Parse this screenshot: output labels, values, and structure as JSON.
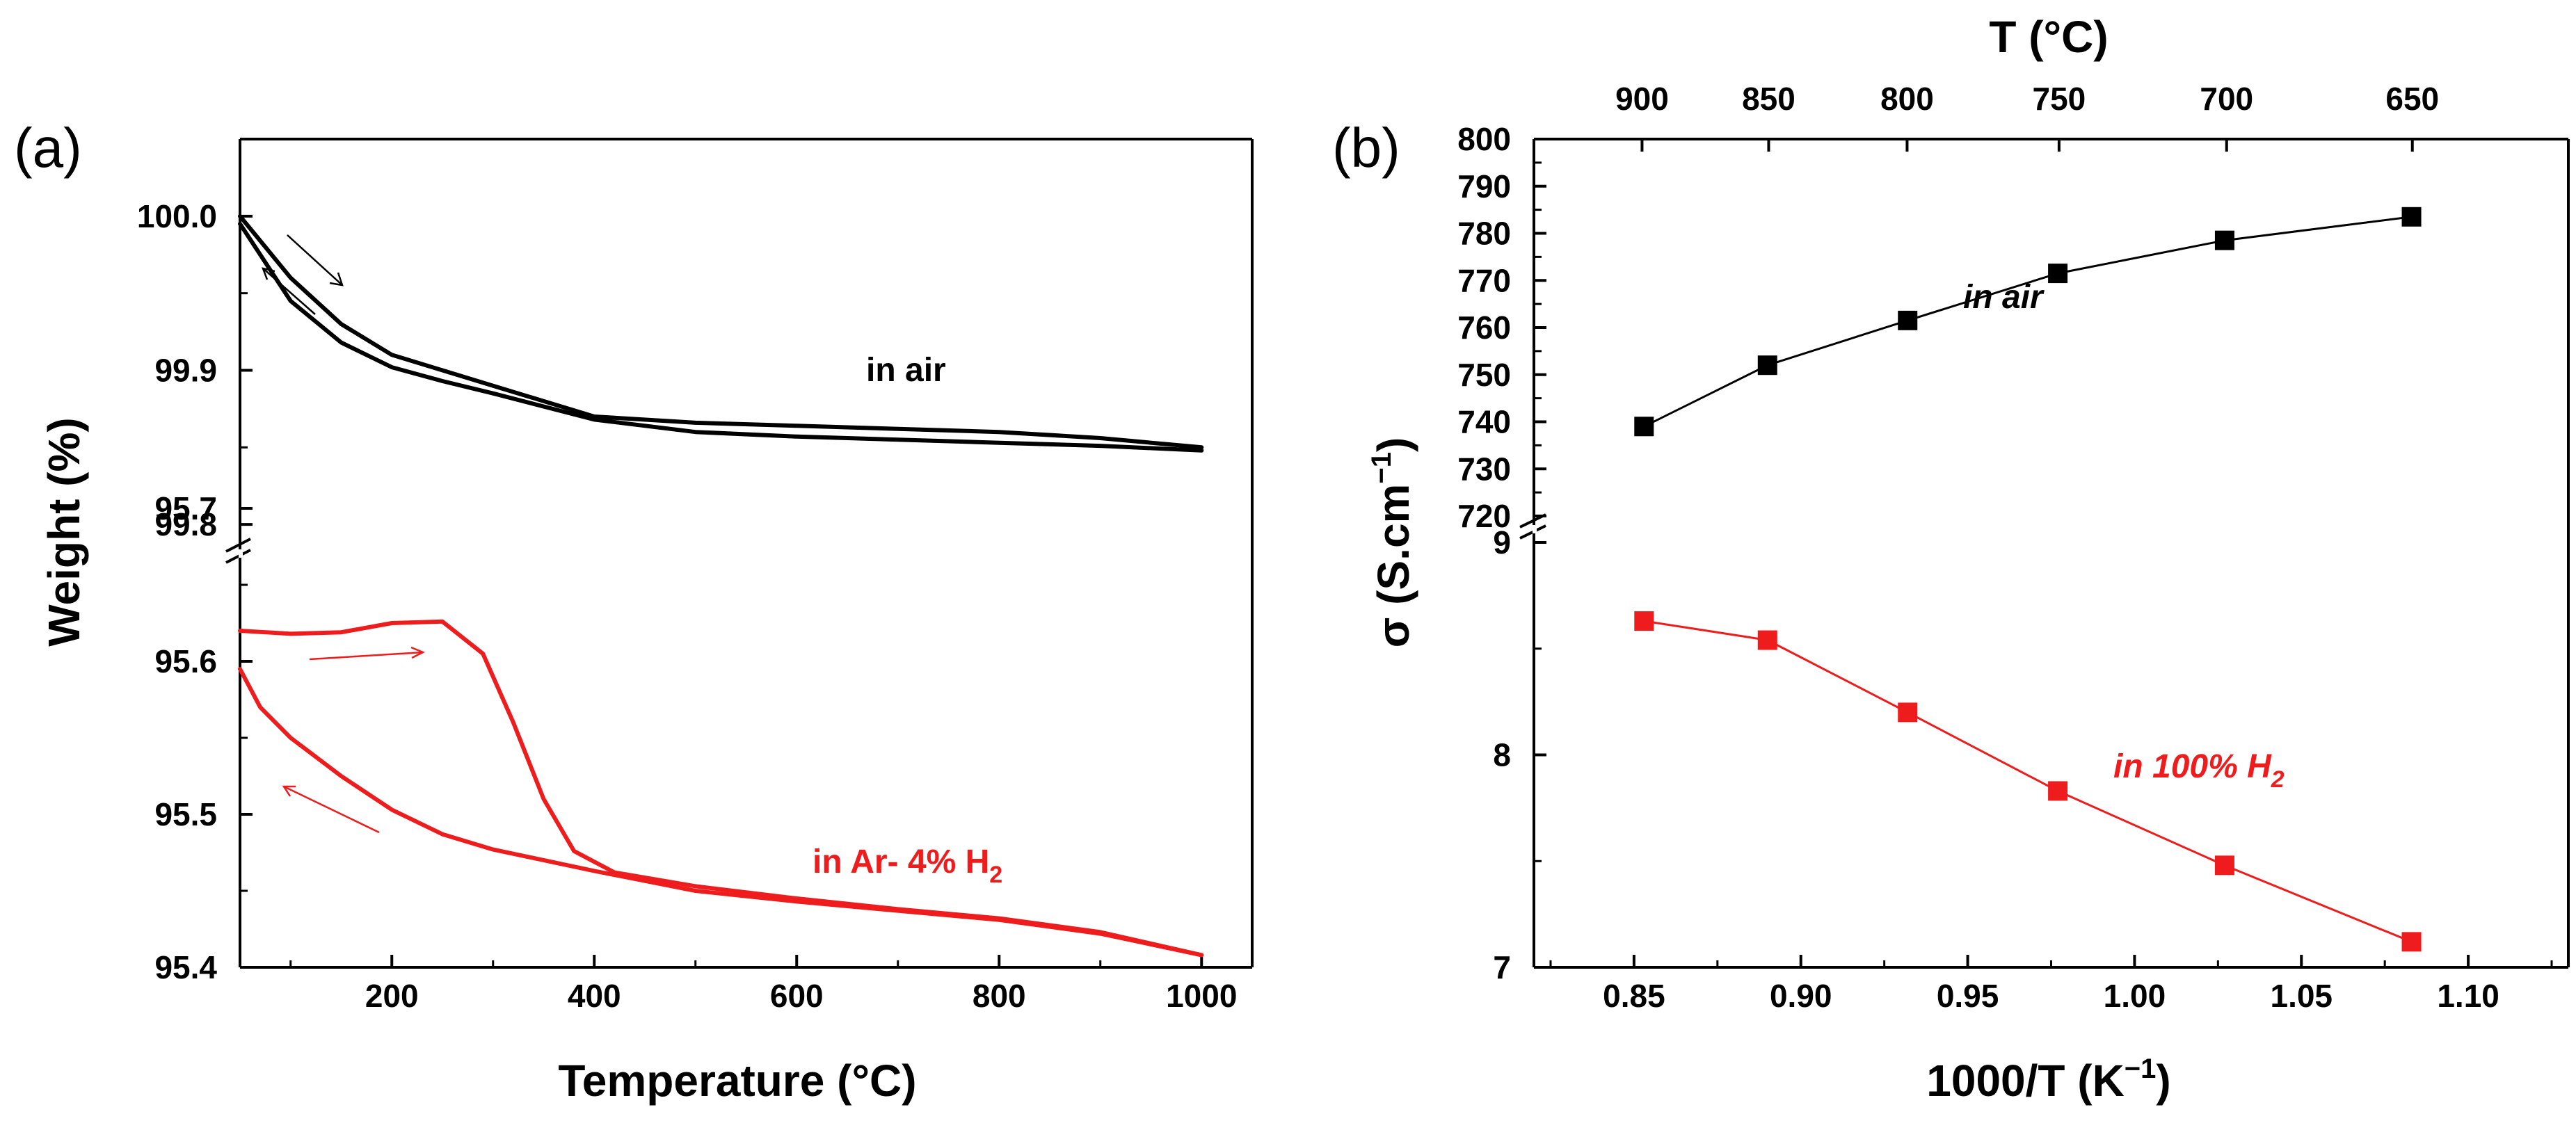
{
  "chart_data": [
    {
      "panel": "(a)",
      "type": "line",
      "xlabel": "Temperature (°C)",
      "ylabel": "Weight (%)",
      "xlim": [
        50,
        1050
      ],
      "xticks": [
        "200",
        "400",
        "600",
        "800",
        "1000"
      ],
      "broken_y_axis": true,
      "upper_ylim": [
        99.75,
        100.05
      ],
      "upper_yticks": [
        "99.8",
        "99.9",
        "100.0"
      ],
      "lower_ylim": [
        95.4,
        95.7
      ],
      "lower_yticks": [
        "95.4",
        "95.5",
        "95.6",
        "95.7"
      ],
      "series": [
        {
          "name": "in air (heating)",
          "color": "#000000",
          "segment": "upper",
          "x": [
            50,
            100,
            150,
            200,
            250,
            300,
            400,
            500,
            600,
            700,
            800,
            900,
            1000
          ],
          "y": [
            100.0,
            99.96,
            99.93,
            99.91,
            99.9,
            99.89,
            99.87,
            99.866,
            99.864,
            99.862,
            99.86,
            99.856,
            99.85
          ]
        },
        {
          "name": "in air (cooling)",
          "color": "#000000",
          "segment": "upper",
          "x": [
            1000,
            900,
            800,
            700,
            600,
            500,
            400,
            300,
            250,
            200,
            150,
            100,
            50
          ],
          "y": [
            99.848,
            99.851,
            99.853,
            99.855,
            99.857,
            99.86,
            99.868,
            99.885,
            99.893,
            99.902,
            99.918,
            99.945,
            99.995
          ]
        },
        {
          "name": "in Ar- 4% H2 (heating)",
          "color": "#ee1c1c",
          "segment": "lower",
          "x": [
            50,
            100,
            150,
            200,
            250,
            290,
            320,
            350,
            380,
            420,
            500,
            600,
            700,
            800,
            900,
            1000
          ],
          "y": [
            95.62,
            95.618,
            95.619,
            95.625,
            95.626,
            95.605,
            95.56,
            95.51,
            95.476,
            95.462,
            95.453,
            95.445,
            95.438,
            95.432,
            95.423,
            95.408
          ]
        },
        {
          "name": "in Ar- 4% H2 (cooling)",
          "color": "#ee1c1c",
          "segment": "lower",
          "x": [
            1000,
            900,
            800,
            700,
            600,
            500,
            400,
            300,
            250,
            200,
            150,
            100,
            70,
            50
          ],
          "y": [
            95.408,
            95.422,
            95.431,
            95.437,
            95.443,
            95.45,
            95.463,
            95.477,
            95.487,
            95.503,
            95.525,
            95.55,
            95.57,
            95.595
          ]
        }
      ],
      "annotations": {
        "air_label": "in air",
        "h2_label_main": "in Ar- 4% H",
        "h2_label_sub": "2"
      }
    },
    {
      "panel": "(b)",
      "type": "scatter",
      "xlabel_main": "1000/T (K",
      "xlabel_sup": "−1",
      "xlabel_close": ")",
      "ylabel_main": "σ (S.cm",
      "ylabel_sup": "−1",
      "ylabel_close": ")",
      "top_axis_title": "T (°C)",
      "top_ticks": [
        900,
        850,
        800,
        750,
        700,
        650
      ],
      "xlim": [
        0.82,
        1.13
      ],
      "xticks": [
        "0.85",
        "0.90",
        "0.95",
        "1.00",
        "1.05",
        "1.10"
      ],
      "broken_y_axis": true,
      "upper_ylim": [
        720,
        800
      ],
      "upper_yticks": [
        "720",
        "730",
        "740",
        "750",
        "760",
        "770",
        "780",
        "790",
        "800"
      ],
      "lower_ylim": [
        7,
        9
      ],
      "lower_yticks": [
        "7",
        "8",
        "9"
      ],
      "series": [
        {
          "name": "in air",
          "color": "#000000",
          "segment": "upper",
          "x": [
            0.853,
            0.89,
            0.932,
            0.977,
            1.027,
            1.083
          ],
          "y": [
            739,
            752,
            761.5,
            771.5,
            778.5,
            783.5
          ]
        },
        {
          "name": "in 100% H2",
          "color": "#ee1c1c",
          "segment": "lower",
          "x": [
            0.853,
            0.89,
            0.932,
            0.977,
            1.027,
            1.083
          ],
          "y": [
            8.63,
            8.54,
            8.2,
            7.83,
            7.48,
            7.12
          ]
        }
      ],
      "annotations": {
        "air_label": "in air",
        "h2_label_main": "in 100% H",
        "h2_label_sub": "2"
      }
    }
  ],
  "colors": {
    "black": "#000000",
    "red": "#ee1c1c"
  }
}
